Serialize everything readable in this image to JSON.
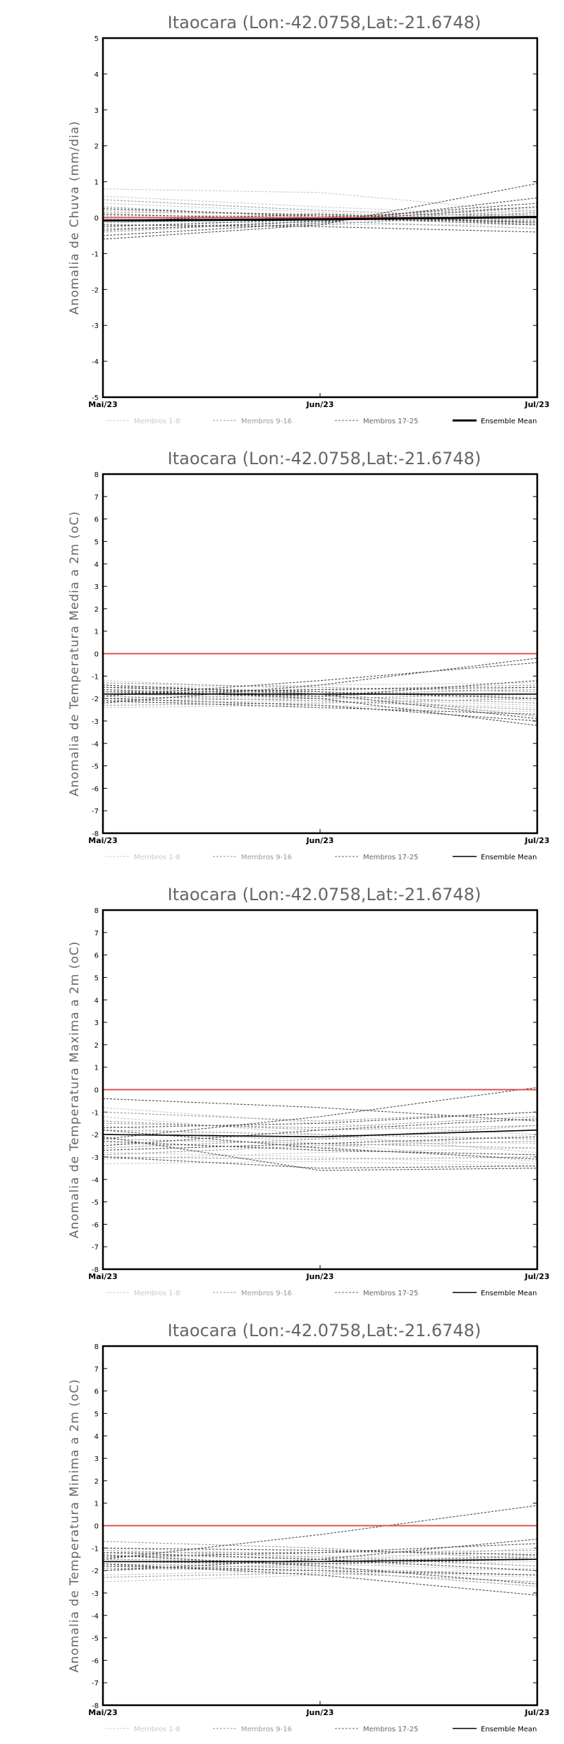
{
  "chart_data": [
    {
      "type": "line",
      "title": "Itaocara (Lon:-42.0758,Lat:-21.6748)",
      "ylabel": "Anomalia de Chuva (mm/dia)",
      "xlabel": "",
      "categories": [
        "Mai/23",
        "Jun/23",
        "Jul/23"
      ],
      "ylim": [
        -5,
        5
      ],
      "yticks": [
        -5,
        -4,
        -3,
        -2,
        -1,
        0,
        1,
        2,
        3,
        4,
        5
      ],
      "legend": [
        "Membros 1-8",
        "Membros 9-16",
        "Membros 17-25",
        "Ensemble Mean"
      ],
      "mean_bold": true,
      "reference_line": {
        "value": 0,
        "color": "#e05050"
      },
      "mean": [
        -0.08,
        -0.05,
        0.02
      ],
      "members": [
        [
          0.8,
          0.7,
          0.15
        ],
        [
          0.6,
          0.3,
          0.05
        ],
        [
          0.4,
          0.15,
          -0.1
        ],
        [
          0.2,
          0.1,
          0.05
        ],
        [
          0.1,
          -0.05,
          0.25
        ],
        [
          0.0,
          0.05,
          -0.1
        ],
        [
          -0.1,
          -0.15,
          0.0
        ],
        [
          -0.2,
          -0.2,
          -0.2
        ],
        [
          0.5,
          0.2,
          0.0
        ],
        [
          0.3,
          0.0,
          0.3
        ],
        [
          0.15,
          0.1,
          -0.2
        ],
        [
          0.05,
          0.05,
          0.1
        ],
        [
          -0.05,
          -0.1,
          0.2
        ],
        [
          -0.15,
          0.0,
          -0.05
        ],
        [
          -0.3,
          -0.2,
          0.15
        ],
        [
          -0.4,
          -0.1,
          -0.3
        ],
        [
          -0.6,
          -0.2,
          0.95
        ],
        [
          -0.5,
          -0.15,
          0.55
        ],
        [
          -0.35,
          -0.1,
          0.3
        ],
        [
          -0.25,
          -0.05,
          0.4
        ],
        [
          -0.1,
          0.1,
          -0.15
        ],
        [
          0.0,
          0.0,
          -0.2
        ],
        [
          0.1,
          -0.05,
          -0.1
        ],
        [
          -0.2,
          -0.25,
          -0.4
        ],
        [
          0.25,
          0.05,
          -0.15
        ]
      ]
    },
    {
      "type": "line",
      "title": "Itaocara (Lon:-42.0758,Lat:-21.6748)",
      "ylabel": "Anomalia de Temperatura Media a 2m (oC)",
      "xlabel": "",
      "categories": [
        "Mai/23",
        "Jun/23",
        "Jul/23"
      ],
      "ylim": [
        -8,
        8
      ],
      "yticks": [
        -8,
        -7,
        -6,
        -5,
        -4,
        -3,
        -2,
        -1,
        0,
        1,
        2,
        3,
        4,
        5,
        6,
        7,
        8
      ],
      "legend": [
        "Membros 1-8",
        "Membros 9-16",
        "Membros 17-25",
        "Ensemble Mean"
      ],
      "mean_bold": false,
      "reference_line": {
        "value": 0,
        "color": "#e05050"
      },
      "mean": [
        -1.8,
        -1.8,
        -1.8
      ],
      "members": [
        [
          -1.2,
          -1.6,
          -2.0
        ],
        [
          -1.4,
          -1.7,
          -2.1
        ],
        [
          -1.6,
          -1.8,
          -1.9
        ],
        [
          -1.8,
          -2.0,
          -2.3
        ],
        [
          -2.0,
          -1.9,
          -1.5
        ],
        [
          -2.2,
          -2.1,
          -2.4
        ],
        [
          -2.4,
          -2.3,
          -2.6
        ],
        [
          -1.5,
          -1.4,
          -1.3
        ],
        [
          -1.3,
          -1.5,
          -1.7
        ],
        [
          -1.5,
          -1.9,
          -2.2
        ],
        [
          -1.7,
          -1.6,
          -1.4
        ],
        [
          -1.9,
          -2.1,
          -2.5
        ],
        [
          -2.1,
          -2.0,
          -1.8
        ],
        [
          -2.3,
          -2.2,
          -2.0
        ],
        [
          -2.0,
          -1.8,
          -1.6
        ],
        [
          -1.8,
          -1.7,
          -2.8
        ],
        [
          -2.2,
          -1.4,
          -0.2
        ],
        [
          -1.9,
          -1.2,
          -0.4
        ],
        [
          -1.6,
          -2.0,
          -3.2
        ],
        [
          -1.4,
          -1.8,
          -2.9
        ],
        [
          -2.0,
          -2.3,
          -3.0
        ],
        [
          -1.7,
          -1.9,
          -1.2
        ],
        [
          -2.1,
          -2.4,
          -2.7
        ],
        [
          -1.8,
          -1.6,
          -1.5
        ],
        [
          -1.5,
          -1.7,
          -2.0
        ]
      ]
    },
    {
      "type": "line",
      "title": "Itaocara (Lon:-42.0758,Lat:-21.6748)",
      "ylabel": "Anomalia de Temperatura Maxima a 2m (oC)",
      "xlabel": "",
      "categories": [
        "Mai/23",
        "Jun/23",
        "Jul/23"
      ],
      "ylim": [
        -8,
        8
      ],
      "yticks": [
        -8,
        -7,
        -6,
        -5,
        -4,
        -3,
        -2,
        -1,
        0,
        1,
        2,
        3,
        4,
        5,
        6,
        7,
        8
      ],
      "legend": [
        "Membros 1-8",
        "Membros 9-16",
        "Membros 17-25",
        "Ensemble Mean"
      ],
      "mean_bold": false,
      "reference_line": {
        "value": 0,
        "color": "#e05050"
      },
      "mean": [
        -2.0,
        -2.1,
        -1.8
      ],
      "members": [
        [
          -0.8,
          -1.5,
          -2.0
        ],
        [
          -1.2,
          -2.0,
          -2.8
        ],
        [
          -1.6,
          -2.4,
          -3.2
        ],
        [
          -2.0,
          -2.2,
          -2.4
        ],
        [
          -2.4,
          -2.6,
          -2.0
        ],
        [
          -2.8,
          -3.0,
          -3.3
        ],
        [
          -3.1,
          -2.8,
          -2.6
        ],
        [
          -3.3,
          -3.2,
          -3.4
        ],
        [
          -1.0,
          -1.4,
          -1.0
        ],
        [
          -1.4,
          -1.8,
          -1.6
        ],
        [
          -1.8,
          -2.0,
          -2.2
        ],
        [
          -2.2,
          -2.4,
          -2.6
        ],
        [
          -2.6,
          -2.2,
          -1.6
        ],
        [
          -3.0,
          -3.1,
          -3.0
        ],
        [
          -2.9,
          -2.5,
          -2.3
        ],
        [
          -1.5,
          -1.7,
          -1.2
        ],
        [
          -0.4,
          -0.8,
          -1.4
        ],
        [
          -2.2,
          -1.2,
          0.1
        ],
        [
          -3.0,
          -3.5,
          -3.4
        ],
        [
          -1.8,
          -2.6,
          -3.1
        ],
        [
          -2.5,
          -1.8,
          -1.3
        ],
        [
          -2.1,
          -3.6,
          -3.5
        ],
        [
          -1.7,
          -1.5,
          -1.0
        ],
        [
          -2.3,
          -2.7,
          -2.9
        ],
        [
          -2.7,
          -2.4,
          -2.1
        ]
      ]
    },
    {
      "type": "line",
      "title": "Itaocara (Lon:-42.0758,Lat:-21.6748)",
      "ylabel": "Anomalia de Temperatura Minima a 2m (oC)",
      "xlabel": "",
      "categories": [
        "Mai/23",
        "Jun/23",
        "Jul/23"
      ],
      "ylim": [
        -8,
        8
      ],
      "yticks": [
        -8,
        -7,
        -6,
        -5,
        -4,
        -3,
        -2,
        -1,
        0,
        1,
        2,
        3,
        4,
        5,
        6,
        7,
        8
      ],
      "legend": [
        "Membros 1-8",
        "Membros 9-16",
        "Membros 17-25",
        "Ensemble Mean"
      ],
      "mean_bold": false,
      "reference_line": {
        "value": 0,
        "color": "#e05050"
      },
      "mean": [
        -1.6,
        -1.6,
        -1.5
      ],
      "members": [
        [
          -1.0,
          -1.3,
          -1.8
        ],
        [
          -1.3,
          -1.5,
          -1.4
        ],
        [
          -1.6,
          -1.7,
          -2.0
        ],
        [
          -1.9,
          -1.8,
          -1.6
        ],
        [
          -2.2,
          -2.0,
          -2.3
        ],
        [
          -2.5,
          -2.2,
          -1.9
        ],
        [
          -1.4,
          -1.4,
          -1.2
        ],
        [
          -1.8,
          -1.6,
          -1.0
        ],
        [
          -0.7,
          -1.0,
          -1.5
        ],
        [
          -1.1,
          -1.4,
          -1.8
        ],
        [
          -1.5,
          -1.6,
          -1.4
        ],
        [
          -1.7,
          -1.9,
          -2.2
        ],
        [
          -2.0,
          -1.7,
          -1.3
        ],
        [
          -2.3,
          -2.1,
          -2.5
        ],
        [
          -1.2,
          -1.2,
          -1.1
        ],
        [
          -1.9,
          -2.0,
          -2.7
        ],
        [
          -1.5,
          -0.4,
          0.9
        ],
        [
          -2.0,
          -1.5,
          -0.6
        ],
        [
          -1.3,
          -1.8,
          -2.6
        ],
        [
          -1.7,
          -2.2,
          -3.1
        ],
        [
          -1.4,
          -1.2,
          -0.8
        ],
        [
          -1.8,
          -2.0,
          -2.2
        ],
        [
          -1.2,
          -1.5,
          -2.0
        ],
        [
          -1.6,
          -1.7,
          -1.5
        ],
        [
          -1.0,
          -1.1,
          -1.3
        ]
      ]
    }
  ]
}
